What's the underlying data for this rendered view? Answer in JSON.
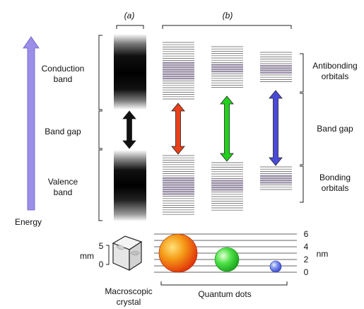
{
  "panel_labels": {
    "a": "(a)",
    "b": "(b)"
  },
  "energy_axis": {
    "label": "Energy",
    "color": "#9a8ee8"
  },
  "left_labels": {
    "conduction_line1": "Conduction",
    "conduction_line2": "band",
    "band_gap": "Band gap",
    "valence_line1": "Valence",
    "valence_line2": "band"
  },
  "right_labels": {
    "antibonding_line1": "Antibonding",
    "antibonding_line2": "orbitals",
    "band_gap": "Band gap",
    "bonding_line1": "Bonding",
    "bonding_line2": "orbitals"
  },
  "gap_arrows": [
    {
      "name": "crystal",
      "color": "#111111"
    },
    {
      "name": "large-dot",
      "color": "#e8401a"
    },
    {
      "name": "medium-dot",
      "color": "#22d11e"
    },
    {
      "name": "small-dot",
      "color": "#4a4ad8"
    }
  ],
  "mm_scale": {
    "unit": "mm",
    "ticks": [
      "5",
      "0"
    ]
  },
  "nm_scale": {
    "unit": "nm",
    "ticks": [
      "6",
      "4",
      "2",
      "0"
    ]
  },
  "bottom_labels": {
    "crystal_line1": "Macroscopic",
    "crystal_line2": "crystal",
    "quantum_dots": "Quantum dots"
  },
  "dot_colors": {
    "large": "#f07a10",
    "medium": "#3fe03a",
    "small": "#5a78e8"
  }
}
